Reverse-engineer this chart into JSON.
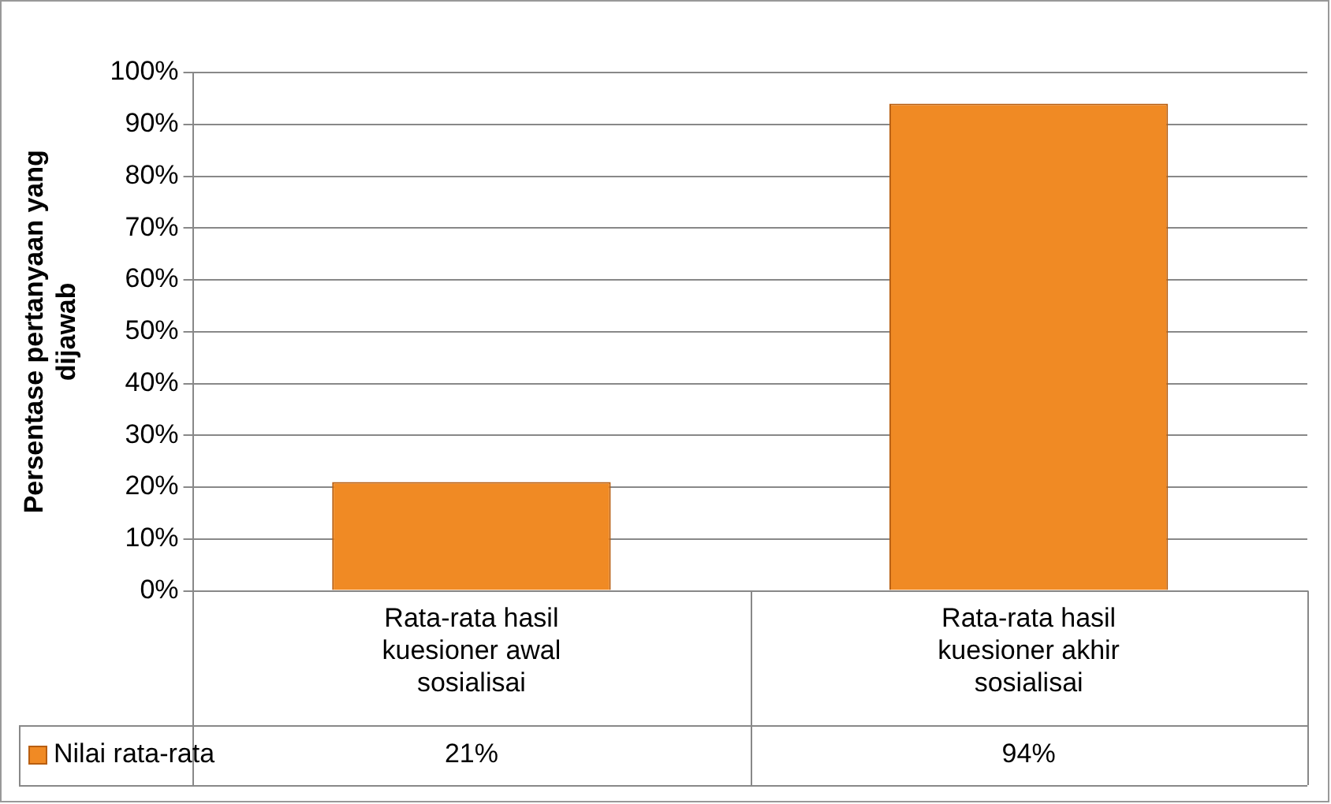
{
  "chart_data": {
    "type": "bar",
    "ylabel": "Persentase pertanyaan yang dijawab",
    "categories": [
      "Rata-rata hasil kuesioner awal sosialisai",
      "Rata-rata hasil kuesioner akhir sosialisai"
    ],
    "series": [
      {
        "name": "Nilai rata-rata",
        "color": "#f08a24",
        "values": [
          21,
          94
        ],
        "value_labels": [
          "21%",
          "94%"
        ]
      }
    ],
    "ylim": [
      0,
      100
    ],
    "yticks": [
      {
        "value": 0,
        "label": "0%"
      },
      {
        "value": 10,
        "label": "10%"
      },
      {
        "value": 20,
        "label": "20%"
      },
      {
        "value": 30,
        "label": "30%"
      },
      {
        "value": 40,
        "label": "40%"
      },
      {
        "value": 50,
        "label": "50%"
      },
      {
        "value": 60,
        "label": "60%"
      },
      {
        "value": 70,
        "label": "70%"
      },
      {
        "value": 80,
        "label": "80%"
      },
      {
        "value": 90,
        "label": "90%"
      },
      {
        "value": 100,
        "label": "100%"
      }
    ],
    "grid": "y",
    "legend": "bottom"
  }
}
